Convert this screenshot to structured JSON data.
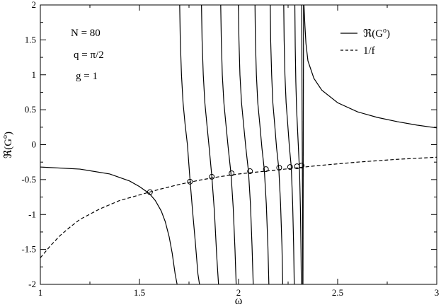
{
  "chart_data": {
    "type": "line",
    "title": "",
    "xlabel": "ω",
    "ylabel": "ℜ(G",
    "ylabel_sup": "o",
    "ylabel_close": ")",
    "xlim": [
      1,
      3
    ],
    "ylim": [
      -2,
      2
    ],
    "x_ticks": [
      1,
      1.5,
      2,
      2.5,
      3
    ],
    "x_tick_labels": [
      "1",
      "1.5",
      "2",
      "2.5",
      "3"
    ],
    "y_ticks": [
      -2,
      -1.5,
      -1,
      -0.5,
      0,
      0.5,
      1,
      1.5,
      2
    ],
    "y_tick_labels": [
      "-2",
      "-1.5",
      "-1",
      "-0.5",
      "0",
      "0.5",
      "1",
      "1.5",
      "2"
    ],
    "grid": false,
    "annotations": [
      "N = 80",
      "q = π/2",
      "g = 1"
    ],
    "legend": {
      "placement": "top-right",
      "entries": [
        {
          "label": "ℜ(G",
          "sup": "o",
          "close": ")",
          "style": "solid"
        },
        {
          "label": "1/f",
          "style": "dashed"
        }
      ]
    },
    "series": [
      {
        "name": "ℜ(Go)",
        "style": "solid",
        "color": "#000000",
        "segments": [
          {
            "x": [
              1.0,
              1.2,
              1.35,
              1.45,
              1.5,
              1.55,
              1.58,
              1.61,
              1.63,
              1.65,
              1.665,
              1.68,
              1.69
            ],
            "y": [
              -0.32,
              -0.35,
              -0.42,
              -0.52,
              -0.6,
              -0.7,
              -0.8,
              -0.95,
              -1.1,
              -1.32,
              -1.55,
              -1.85,
              -2.0
            ]
          },
          {
            "x": [
              1.703,
              1.706,
              1.712,
              1.72,
              1.73,
              1.742,
              1.755,
              1.768,
              1.782,
              1.795,
              1.803
            ],
            "y": [
              2.0,
              1.5,
              1.0,
              0.6,
              0.3,
              0.0,
              -0.5,
              -0.95,
              -1.4,
              -1.85,
              -2.0
            ]
          },
          {
            "x": [
              1.813,
              1.816,
              1.822,
              1.83,
              1.84,
              1.852,
              1.865,
              1.878,
              1.89,
              1.899
            ],
            "y": [
              2.0,
              1.5,
              1.0,
              0.6,
              0.3,
              -0.05,
              -0.45,
              -0.95,
              -1.6,
              -2.0
            ]
          },
          {
            "x": [
              1.91,
              1.913,
              1.918,
              1.926,
              1.936,
              1.948,
              1.962,
              1.973,
              1.982,
              1.988
            ],
            "y": [
              2.0,
              1.5,
              1.0,
              0.6,
              0.3,
              -0.05,
              -0.42,
              -0.9,
              -1.5,
              -2.0
            ]
          },
          {
            "x": [
              1.999,
              2.002,
              2.007,
              2.015,
              2.025,
              2.037,
              2.05,
              2.06,
              2.068,
              2.074
            ],
            "y": [
              2.0,
              1.5,
              1.0,
              0.6,
              0.3,
              -0.05,
              -0.38,
              -0.85,
              -1.45,
              -2.0
            ]
          },
          {
            "x": [
              2.083,
              2.085,
              2.09,
              2.097,
              2.107,
              2.118,
              2.13,
              2.14,
              2.148,
              2.153
            ],
            "y": [
              2.0,
              1.5,
              1.0,
              0.6,
              0.3,
              -0.05,
              -0.36,
              -0.85,
              -1.45,
              -2.0
            ]
          },
          {
            "x": [
              2.16,
              2.162,
              2.167,
              2.173,
              2.182,
              2.192,
              2.203,
              2.212,
              2.219,
              2.223
            ],
            "y": [
              2.0,
              1.5,
              1.0,
              0.6,
              0.3,
              -0.05,
              -0.34,
              -0.85,
              -1.45,
              -2.0
            ]
          },
          {
            "x": [
              2.228,
              2.23,
              2.234,
              2.24,
              2.248,
              2.257,
              2.266,
              2.273,
              2.278,
              2.281
            ],
            "y": [
              2.0,
              1.5,
              1.0,
              0.6,
              0.3,
              -0.05,
              -0.32,
              -0.85,
              -1.45,
              -2.0
            ]
          },
          {
            "x": [
              2.284,
              2.286,
              2.289,
              2.293,
              2.298,
              2.303,
              2.308,
              2.312,
              2.315,
              2.317
            ],
            "y": [
              2.0,
              1.4,
              0.9,
              0.5,
              0.2,
              -0.1,
              -0.4,
              -0.9,
              -1.5,
              -2.0
            ]
          },
          {
            "x": [
              2.319,
              2.32,
              2.321,
              2.322,
              2.323,
              2.324
            ],
            "y": [
              2.0,
              1.0,
              0.2,
              -0.3,
              -1.2,
              -2.0
            ]
          },
          {
            "x": [
              2.325,
              2.328
            ],
            "y": [
              -2.0,
              2.0
            ]
          },
          {
            "x": [
              2.33,
              2.335,
              2.34,
              2.35,
              2.38,
              2.42,
              2.5,
              2.6,
              2.7,
              2.8,
              2.9,
              3.0
            ],
            "y": [
              2.0,
              1.7,
              1.45,
              1.2,
              0.95,
              0.78,
              0.6,
              0.47,
              0.39,
              0.33,
              0.28,
              0.24
            ]
          }
        ]
      },
      {
        "name": "1/f",
        "style": "dashed",
        "color": "#000000",
        "x": [
          1.0,
          1.05,
          1.1,
          1.15,
          1.2,
          1.3,
          1.4,
          1.5,
          1.6,
          1.7,
          1.8,
          1.9,
          2.0,
          2.2,
          2.4,
          2.6,
          2.8,
          3.0
        ],
        "y": [
          -1.62,
          -1.45,
          -1.3,
          -1.18,
          -1.07,
          -0.92,
          -0.8,
          -0.72,
          -0.64,
          -0.57,
          -0.51,
          -0.46,
          -0.42,
          -0.36,
          -0.3,
          -0.25,
          -0.21,
          -0.18
        ]
      }
    ],
    "intersections": {
      "x": [
        1.553,
        1.755,
        1.865,
        1.965,
        2.058,
        2.138,
        2.205,
        2.26,
        2.295,
        2.318
      ],
      "y": [
        -0.68,
        -0.53,
        -0.46,
        -0.41,
        -0.38,
        -0.35,
        -0.33,
        -0.32,
        -0.31,
        -0.3
      ]
    }
  }
}
